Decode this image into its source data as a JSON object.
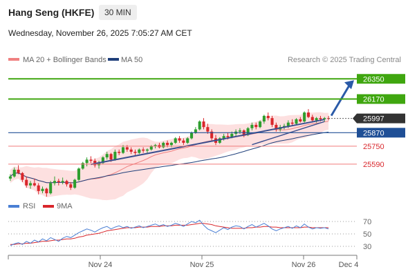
{
  "header": {
    "title": "Hang Seng (HKFE)",
    "timeframe": "30 MIN",
    "datetime": "Wednesday, November 26, 2025 7:05:27 AM CET"
  },
  "legend": {
    "ma20": "MA 20 + Bollinger Bands",
    "ma50": "MA 50",
    "credit": "Research © 2025 Trading Central",
    "rsi": "RSI",
    "rsi_ma": "9MA"
  },
  "colors": {
    "candle_up": "#2e9e2e",
    "candle_down": "#d9262b",
    "bollinger_fill": "#fde0e0",
    "ma20": "#f08080",
    "ma50": "#1f3f7a",
    "trendline": "#3a4f8f",
    "resistance": "#3fa60f",
    "support": "#f07a7a",
    "pivot": "#1f4f96",
    "arrow": "#2a5aa8",
    "last_price": "#333333"
  },
  "chart_data": [
    {
      "type": "candlestick",
      "title": "Hang Seng (HKFE)",
      "timeframe": "30 MIN",
      "x_tick_labels": [
        "Nov 24",
        "Nov 25",
        "Nov 26",
        "Dec 4"
      ],
      "ylim": [
        25300,
        26450
      ],
      "last_price": 25997,
      "levels": [
        {
          "value": 26350,
          "label": "26350",
          "role": "resistance"
        },
        {
          "value": 26170,
          "label": "26170",
          "role": "resistance"
        },
        {
          "value": 25870,
          "label": "25870",
          "role": "pivot"
        },
        {
          "value": 25750,
          "label": "25750",
          "role": "support"
        },
        {
          "value": 25590,
          "label": "25590",
          "role": "support"
        }
      ],
      "last_price_label": "25997",
      "series": [
        {
          "name": "MA 20 + Bollinger Bands",
          "kind": "ma20"
        },
        {
          "name": "MA 50",
          "kind": "ma50"
        }
      ],
      "candles": [
        [
          25461,
          25500,
          25440,
          25480
        ],
        [
          25480,
          25560,
          25470,
          25540
        ],
        [
          25540,
          25580,
          25500,
          25510
        ],
        [
          25510,
          25520,
          25430,
          25450
        ],
        [
          25450,
          25480,
          25380,
          25400
        ],
        [
          25400,
          25440,
          25370,
          25420
        ],
        [
          25420,
          25460,
          25390,
          25400
        ],
        [
          25400,
          25420,
          25320,
          25350
        ],
        [
          25350,
          25390,
          25330,
          25370
        ],
        [
          25370,
          25380,
          25300,
          25330
        ],
        [
          25330,
          25440,
          25320,
          25420
        ],
        [
          25420,
          25480,
          25400,
          25440
        ],
        [
          25440,
          25460,
          25400,
          25430
        ],
        [
          25430,
          25470,
          25410,
          25440
        ],
        [
          25440,
          25450,
          25390,
          25410
        ],
        [
          25410,
          25430,
          25360,
          25380
        ],
        [
          25380,
          25460,
          25370,
          25450
        ],
        [
          25450,
          25560,
          25440,
          25550
        ],
        [
          25550,
          25610,
          25540,
          25600
        ],
        [
          25600,
          25650,
          25570,
          25630
        ],
        [
          25630,
          25660,
          25600,
          25620
        ],
        [
          25620,
          25640,
          25560,
          25580
        ],
        [
          25580,
          25620,
          25550,
          25600
        ],
        [
          25600,
          25660,
          25590,
          25650
        ],
        [
          25650,
          25700,
          25630,
          25680
        ],
        [
          25680,
          25690,
          25610,
          25630
        ],
        [
          25630,
          25720,
          25620,
          25700
        ],
        [
          25700,
          25720,
          25670,
          25690
        ],
        [
          25690,
          25760,
          25680,
          25740
        ],
        [
          25740,
          25760,
          25700,
          25720
        ],
        [
          25720,
          25740,
          25680,
          25700
        ],
        [
          25700,
          25720,
          25670,
          25690
        ],
        [
          25690,
          25730,
          25680,
          25720
        ],
        [
          25720,
          25740,
          25690,
          25710
        ],
        [
          25710,
          25730,
          25690,
          25720
        ],
        [
          25720,
          25760,
          25710,
          25750
        ],
        [
          25750,
          25770,
          25730,
          25760
        ],
        [
          25760,
          25780,
          25730,
          25740
        ],
        [
          25740,
          25790,
          25730,
          25780
        ],
        [
          25780,
          25800,
          25740,
          25760
        ],
        [
          25760,
          25790,
          25740,
          25780
        ],
        [
          25780,
          25830,
          25770,
          25820
        ],
        [
          25820,
          25840,
          25780,
          25800
        ],
        [
          25800,
          25820,
          25760,
          25780
        ],
        [
          25780,
          25830,
          25770,
          25820
        ],
        [
          25820,
          25880,
          25810,
          25870
        ],
        [
          25870,
          25920,
          25860,
          25900
        ],
        [
          25900,
          25980,
          25890,
          25970
        ],
        [
          25970,
          26000,
          25900,
          25920
        ],
        [
          25920,
          25950,
          25860,
          25880
        ],
        [
          25880,
          25900,
          25800,
          25820
        ],
        [
          25820,
          25850,
          25760,
          25780
        ],
        [
          25780,
          25830,
          25770,
          25820
        ],
        [
          25820,
          25860,
          25800,
          25840
        ],
        [
          25840,
          25870,
          25810,
          25830
        ],
        [
          25830,
          25880,
          25820,
          25860
        ],
        [
          25860,
          25900,
          25840,
          25880
        ],
        [
          25880,
          25910,
          25860,
          25890
        ],
        [
          25890,
          25900,
          25830,
          25850
        ],
        [
          25850,
          25920,
          25840,
          25910
        ],
        [
          25910,
          25960,
          25890,
          25940
        ],
        [
          25940,
          25960,
          25900,
          25920
        ],
        [
          25920,
          25980,
          25910,
          25970
        ],
        [
          25970,
          26030,
          25950,
          26020
        ],
        [
          26020,
          26050,
          25980,
          26000
        ],
        [
          26000,
          26020,
          25920,
          25940
        ],
        [
          25940,
          25960,
          25880,
          25900
        ],
        [
          25900,
          25940,
          25880,
          25920
        ],
        [
          25920,
          25950,
          25900,
          25930
        ],
        [
          25930,
          25980,
          25910,
          25960
        ],
        [
          25960,
          25990,
          25930,
          25950
        ],
        [
          25950,
          26000,
          25940,
          25990
        ],
        [
          25990,
          26010,
          25960,
          25970
        ],
        [
          25970,
          26060,
          25960,
          26050
        ],
        [
          26050,
          26080,
          26000,
          26010
        ],
        [
          26010,
          26030,
          25960,
          25980
        ],
        [
          25980,
          26010,
          25960,
          26000
        ],
        [
          26000,
          26020,
          25970,
          25990
        ],
        [
          25990,
          26010,
          25970,
          26000
        ],
        [
          26000,
          26020,
          25980,
          25997
        ]
      ]
    },
    {
      "type": "line",
      "title": "RSI",
      "ylim": [
        20,
        80
      ],
      "y_ticks": [
        30,
        50,
        70
      ],
      "series": [
        {
          "name": "RSI",
          "values": [
            31,
            34,
            36,
            33,
            38,
            35,
            40,
            37,
            42,
            39,
            44,
            41,
            38,
            43,
            46,
            44,
            48,
            52,
            55,
            58,
            56,
            53,
            57,
            60,
            62,
            58,
            61,
            63,
            60,
            62,
            59,
            61,
            63,
            60,
            62,
            64,
            66,
            63,
            65,
            62,
            64,
            67,
            65,
            62,
            66,
            70,
            68,
            72,
            64,
            58,
            55,
            52,
            56,
            60,
            57,
            61,
            63,
            62,
            58,
            62,
            65,
            61,
            64,
            67,
            63,
            58,
            55,
            58,
            60,
            62,
            59,
            63,
            60,
            66,
            61,
            58,
            60,
            59,
            60,
            58
          ]
        },
        {
          "name": "9MA",
          "values": [
            33,
            33,
            34,
            34,
            35,
            35,
            36,
            37,
            38,
            38,
            39,
            40,
            40,
            41,
            42,
            42,
            43,
            45,
            46,
            48,
            49,
            50,
            51,
            53,
            55,
            56,
            57,
            58,
            59,
            60,
            60,
            60,
            61,
            61,
            61,
            62,
            62,
            62,
            63,
            63,
            63,
            64,
            64,
            64,
            64,
            65,
            66,
            67,
            67,
            66,
            65,
            63,
            62,
            61,
            60,
            59,
            59,
            59,
            59,
            60,
            60,
            61,
            61,
            62,
            62,
            61,
            61,
            60,
            60,
            60,
            60,
            60,
            60,
            61,
            61,
            60,
            60,
            60,
            60,
            60
          ]
        }
      ]
    }
  ]
}
